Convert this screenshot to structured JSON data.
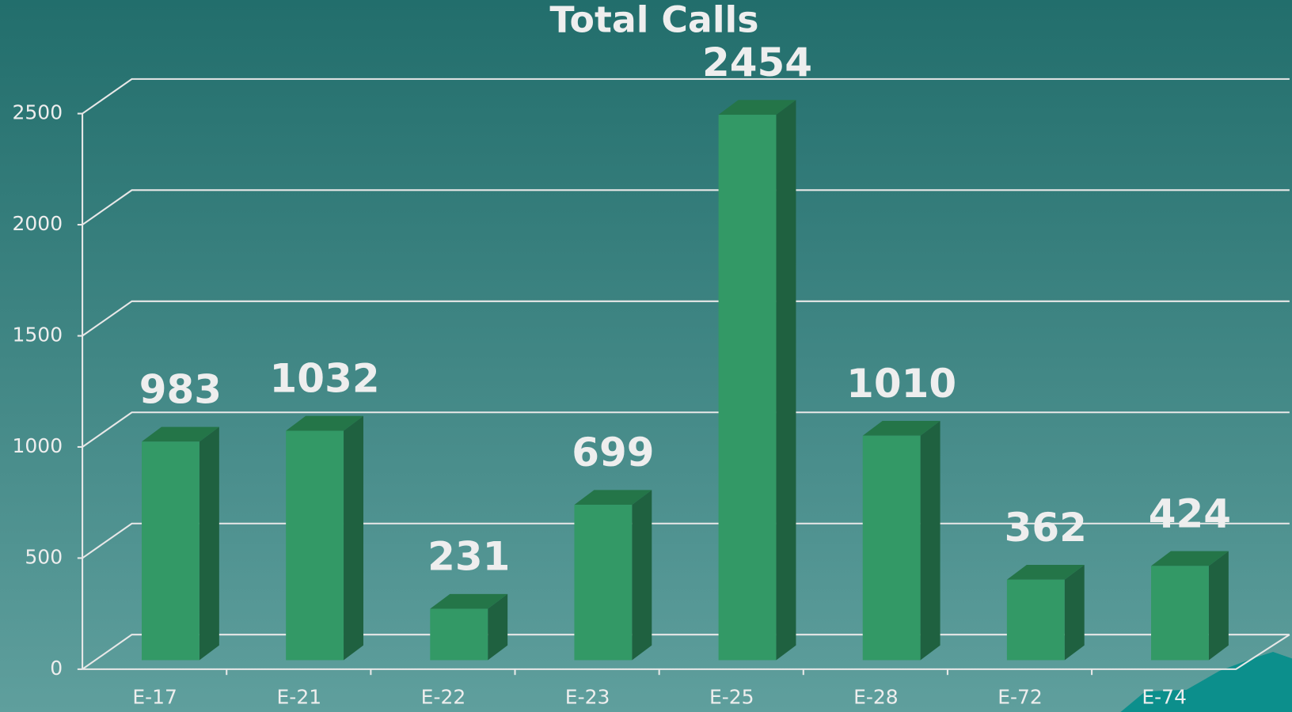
{
  "chart_data": {
    "type": "bar",
    "title": "Total Calls",
    "categories": [
      "E-17",
      "E-21",
      "E-22",
      "E-23",
      "E-25",
      "E-28",
      "E-72",
      "E-74"
    ],
    "values": [
      983,
      1032,
      231,
      699,
      2454,
      1010,
      362,
      424
    ],
    "color": "#339966",
    "ylim": [
      0,
      2500
    ],
    "yticks": [
      0,
      500,
      1000,
      1500,
      2000,
      2500
    ],
    "grid": true
  }
}
